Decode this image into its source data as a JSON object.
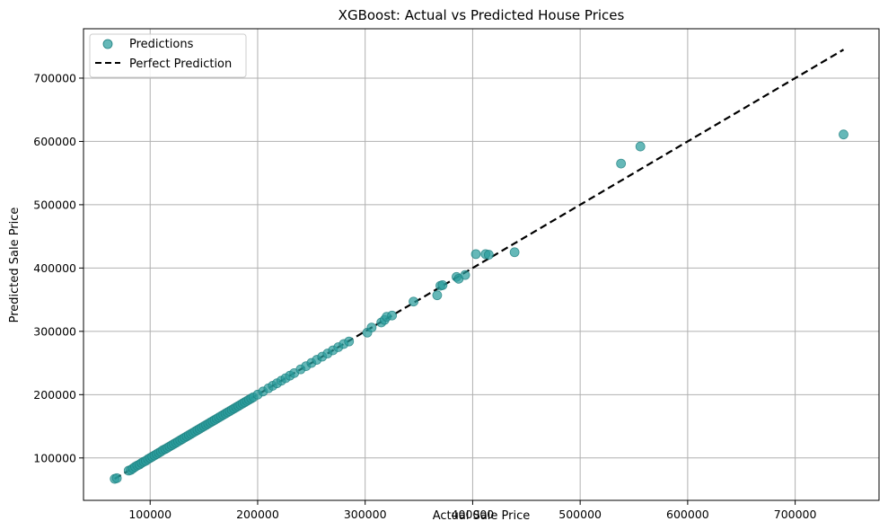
{
  "chart_data": {
    "type": "scatter",
    "title": "XGBoost: Actual vs Predicted House Prices",
    "xlabel": "Actual Sale Price",
    "ylabel": "Predicted Sale Price",
    "xlim": [
      38000,
      778000
    ],
    "ylim": [
      33000,
      778000
    ],
    "xticks": [
      100000,
      200000,
      300000,
      400000,
      500000,
      600000,
      700000
    ],
    "yticks": [
      100000,
      200000,
      300000,
      400000,
      500000,
      600000,
      700000
    ],
    "grid": true,
    "legend": {
      "position": "top-left",
      "entries": [
        "Predictions",
        "Perfect Prediction"
      ]
    },
    "colors": {
      "points": "#2a9d9d",
      "point_edge": "#1e7f7f",
      "line": "#000000",
      "grid": "#b0b0b0"
    },
    "series": [
      {
        "name": "Predictions",
        "kind": "scatter",
        "points": [
          [
            67000,
            67000
          ],
          [
            69000,
            68000
          ],
          [
            80000,
            80000
          ],
          [
            82000,
            81000
          ],
          [
            84000,
            83500
          ],
          [
            86000,
            86000
          ],
          [
            88000,
            88000
          ],
          [
            90000,
            89500
          ],
          [
            92000,
            92000
          ],
          [
            94000,
            94000
          ],
          [
            96000,
            95500
          ],
          [
            98000,
            98000
          ],
          [
            100000,
            100000
          ],
          [
            102000,
            102000
          ],
          [
            104000,
            104000
          ],
          [
            106000,
            106000
          ],
          [
            108000,
            108000
          ],
          [
            110000,
            110000
          ],
          [
            112000,
            112500
          ],
          [
            114000,
            114000
          ],
          [
            116000,
            116000
          ],
          [
            118000,
            118000
          ],
          [
            120000,
            120000
          ],
          [
            122000,
            122000
          ],
          [
            124000,
            124000
          ],
          [
            126000,
            126000
          ],
          [
            128000,
            128000
          ],
          [
            130000,
            130000
          ],
          [
            132000,
            132000
          ],
          [
            134000,
            134000
          ],
          [
            136000,
            136000
          ],
          [
            138000,
            138000
          ],
          [
            140000,
            140000
          ],
          [
            142000,
            142000
          ],
          [
            144000,
            144000
          ],
          [
            146000,
            146000
          ],
          [
            148000,
            148000
          ],
          [
            150000,
            150000
          ],
          [
            152000,
            152000
          ],
          [
            154000,
            154000
          ],
          [
            156000,
            156000
          ],
          [
            158000,
            158000
          ],
          [
            160000,
            160000
          ],
          [
            162000,
            162000
          ],
          [
            164000,
            164000
          ],
          [
            166000,
            166000
          ],
          [
            168000,
            168000
          ],
          [
            170000,
            170000
          ],
          [
            172000,
            172000
          ],
          [
            174000,
            174000
          ],
          [
            176000,
            176000
          ],
          [
            178000,
            178000
          ],
          [
            180000,
            180000
          ],
          [
            182000,
            182000
          ],
          [
            184000,
            184000
          ],
          [
            186000,
            186000
          ],
          [
            188000,
            188000
          ],
          [
            190000,
            190000
          ],
          [
            192000,
            192000
          ],
          [
            194000,
            194000
          ],
          [
            196000,
            196000
          ],
          [
            200000,
            200000
          ],
          [
            205000,
            205000
          ],
          [
            210000,
            210000
          ],
          [
            214000,
            214000
          ],
          [
            218000,
            218000
          ],
          [
            222000,
            222000
          ],
          [
            226000,
            226000
          ],
          [
            230000,
            230000
          ],
          [
            234000,
            234000
          ],
          [
            240000,
            240000
          ],
          [
            245000,
            245000
          ],
          [
            250000,
            250000
          ],
          [
            255000,
            255000
          ],
          [
            260000,
            260000
          ],
          [
            265000,
            265000
          ],
          [
            270000,
            270000
          ],
          [
            275000,
            275000
          ],
          [
            280000,
            280000
          ],
          [
            285000,
            284000
          ],
          [
            302000,
            298000
          ],
          [
            306000,
            306000
          ],
          [
            315000,
            314000
          ],
          [
            318000,
            318000
          ],
          [
            320000,
            323000
          ],
          [
            325000,
            325000
          ],
          [
            345000,
            347000
          ],
          [
            367000,
            357000
          ],
          [
            370000,
            372000
          ],
          [
            372000,
            373000
          ],
          [
            385000,
            386000
          ],
          [
            387000,
            383000
          ],
          [
            393000,
            389000
          ],
          [
            403000,
            422000
          ],
          [
            412000,
            422000
          ],
          [
            415000,
            421000
          ],
          [
            439000,
            425000
          ],
          [
            538000,
            565000
          ],
          [
            556000,
            592000
          ],
          [
            745000,
            611000
          ]
        ]
      },
      {
        "name": "Perfect Prediction",
        "kind": "line",
        "style": "dashed",
        "points": [
          [
            67000,
            67000
          ],
          [
            745000,
            745000
          ]
        ]
      }
    ]
  }
}
